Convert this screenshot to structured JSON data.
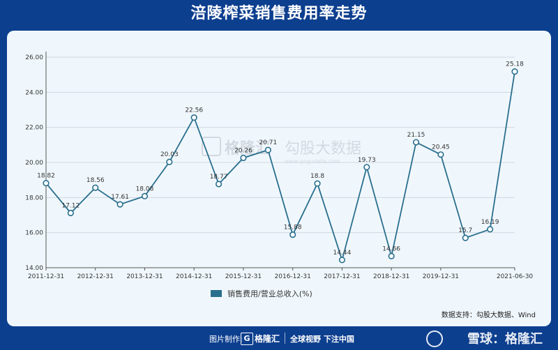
{
  "header": {
    "title": "涪陵榨菜销售费用率走势"
  },
  "chart_data": {
    "type": "line",
    "title": "",
    "xlabel": "",
    "ylabel": "",
    "ylim": [
      14.0,
      26.0
    ],
    "yticks": [
      "14.00",
      "16.00",
      "18.00",
      "20.00",
      "22.00",
      "24.00",
      "26.00"
    ],
    "xtick_labels": [
      "2011-12-31",
      "2012-12-31",
      "2013-12-31",
      "2014-12-31",
      "2015-12-31",
      "2016-12-31",
      "2017-12-31",
      "2018-12-31",
      "2019-12-31",
      "2021-06-30"
    ],
    "categories": [
      "2011-12-31",
      "2012-06-30",
      "2012-12-31",
      "2013-06-30",
      "2013-12-31",
      "2014-06-30",
      "2014-12-31",
      "2015-06-30",
      "2015-12-31",
      "2016-06-30",
      "2016-12-31",
      "2017-06-30",
      "2017-12-31",
      "2018-06-30",
      "2018-12-31",
      "2019-06-30",
      "2019-12-31",
      "2020-06-30",
      "2020-12-31",
      "2021-06-30"
    ],
    "series": [
      {
        "name": "销售费用/营业总收入(%)",
        "values": [
          18.82,
          17.12,
          18.56,
          17.61,
          18.08,
          20.03,
          22.56,
          18.77,
          20.26,
          20.71,
          15.88,
          18.8,
          14.44,
          19.73,
          14.66,
          21.15,
          20.45,
          15.7,
          16.19,
          25.18
        ],
        "labels": [
          "18.82",
          "17.12",
          "18.56",
          "17.61",
          "18.08",
          "20.03",
          "22.56",
          "18.77",
          "20.26",
          "20.71",
          "15.88",
          "18.8",
          "14.44",
          "19.73",
          "14.66",
          "21.15",
          "20.45",
          "15.7",
          "16.19",
          "25.18"
        ],
        "color": "#2a6f8e"
      }
    ],
    "grid": true,
    "legend": "bottom-left"
  },
  "source_text": "数据支持：勾股大数据、Wind",
  "watermark": {
    "brand": "格隆汇",
    "site": "勾股大数据",
    "url": "www.gogudata.com"
  },
  "footer": {
    "credit": "图片制作:",
    "logo_glyph": "G",
    "logo_text": "格隆汇",
    "slogan": "全球视野 下注中国",
    "xueqiu": "雪球：格隆汇"
  }
}
